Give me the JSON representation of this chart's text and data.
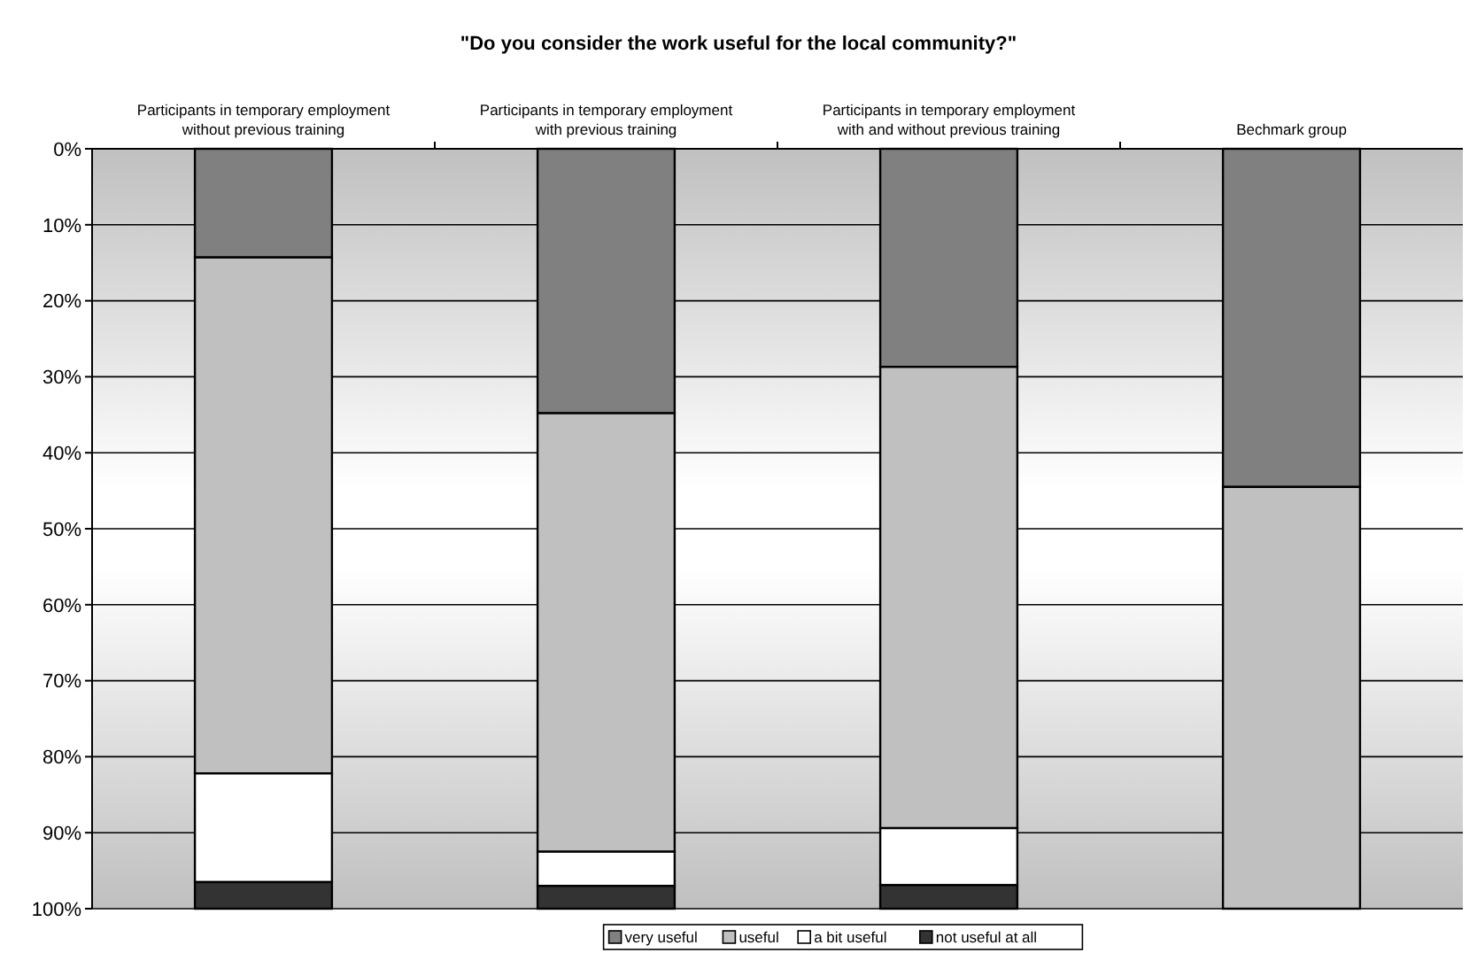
{
  "chart_data": {
    "type": "bar",
    "title": "\"Do you consider the work useful for the local community?\"",
    "categories": [
      "Participants in temporary employment\nwithout previous training",
      "Participants in temporary employment\nwith previous training",
      "Participants in temporary employment\nwith and without previous training",
      "Bechmark group"
    ],
    "stacked": true,
    "series": [
      {
        "name": "very useful",
        "color": "#808080",
        "values": [
          14.3,
          34.8,
          28.7,
          44.5
        ]
      },
      {
        "name": "useful",
        "color": "#c0c0c0",
        "values": [
          67.9,
          57.7,
          60.7,
          55.5
        ]
      },
      {
        "name": "a bit useful",
        "color": "#ffffff",
        "values": [
          14.3,
          4.5,
          7.5,
          0
        ]
      },
      {
        "name": "not useful at all",
        "color": "#333333",
        "values": [
          3.5,
          3.0,
          3.1,
          0
        ]
      }
    ],
    "ylim": [
      100,
      0
    ],
    "yticks": [
      {
        "value": 0,
        "label": "0%"
      },
      {
        "value": 10,
        "label": "10%"
      },
      {
        "value": 20,
        "label": "20%"
      },
      {
        "value": 30,
        "label": "30%"
      },
      {
        "value": 40,
        "label": "40%"
      },
      {
        "value": 50,
        "label": "50%"
      },
      {
        "value": 60,
        "label": "60%"
      },
      {
        "value": 70,
        "label": "70%"
      },
      {
        "value": 80,
        "label": "80%"
      },
      {
        "value": 90,
        "label": "90%"
      },
      {
        "value": 100,
        "label": "100%"
      }
    ],
    "grid": "y",
    "legend": "bottom"
  }
}
